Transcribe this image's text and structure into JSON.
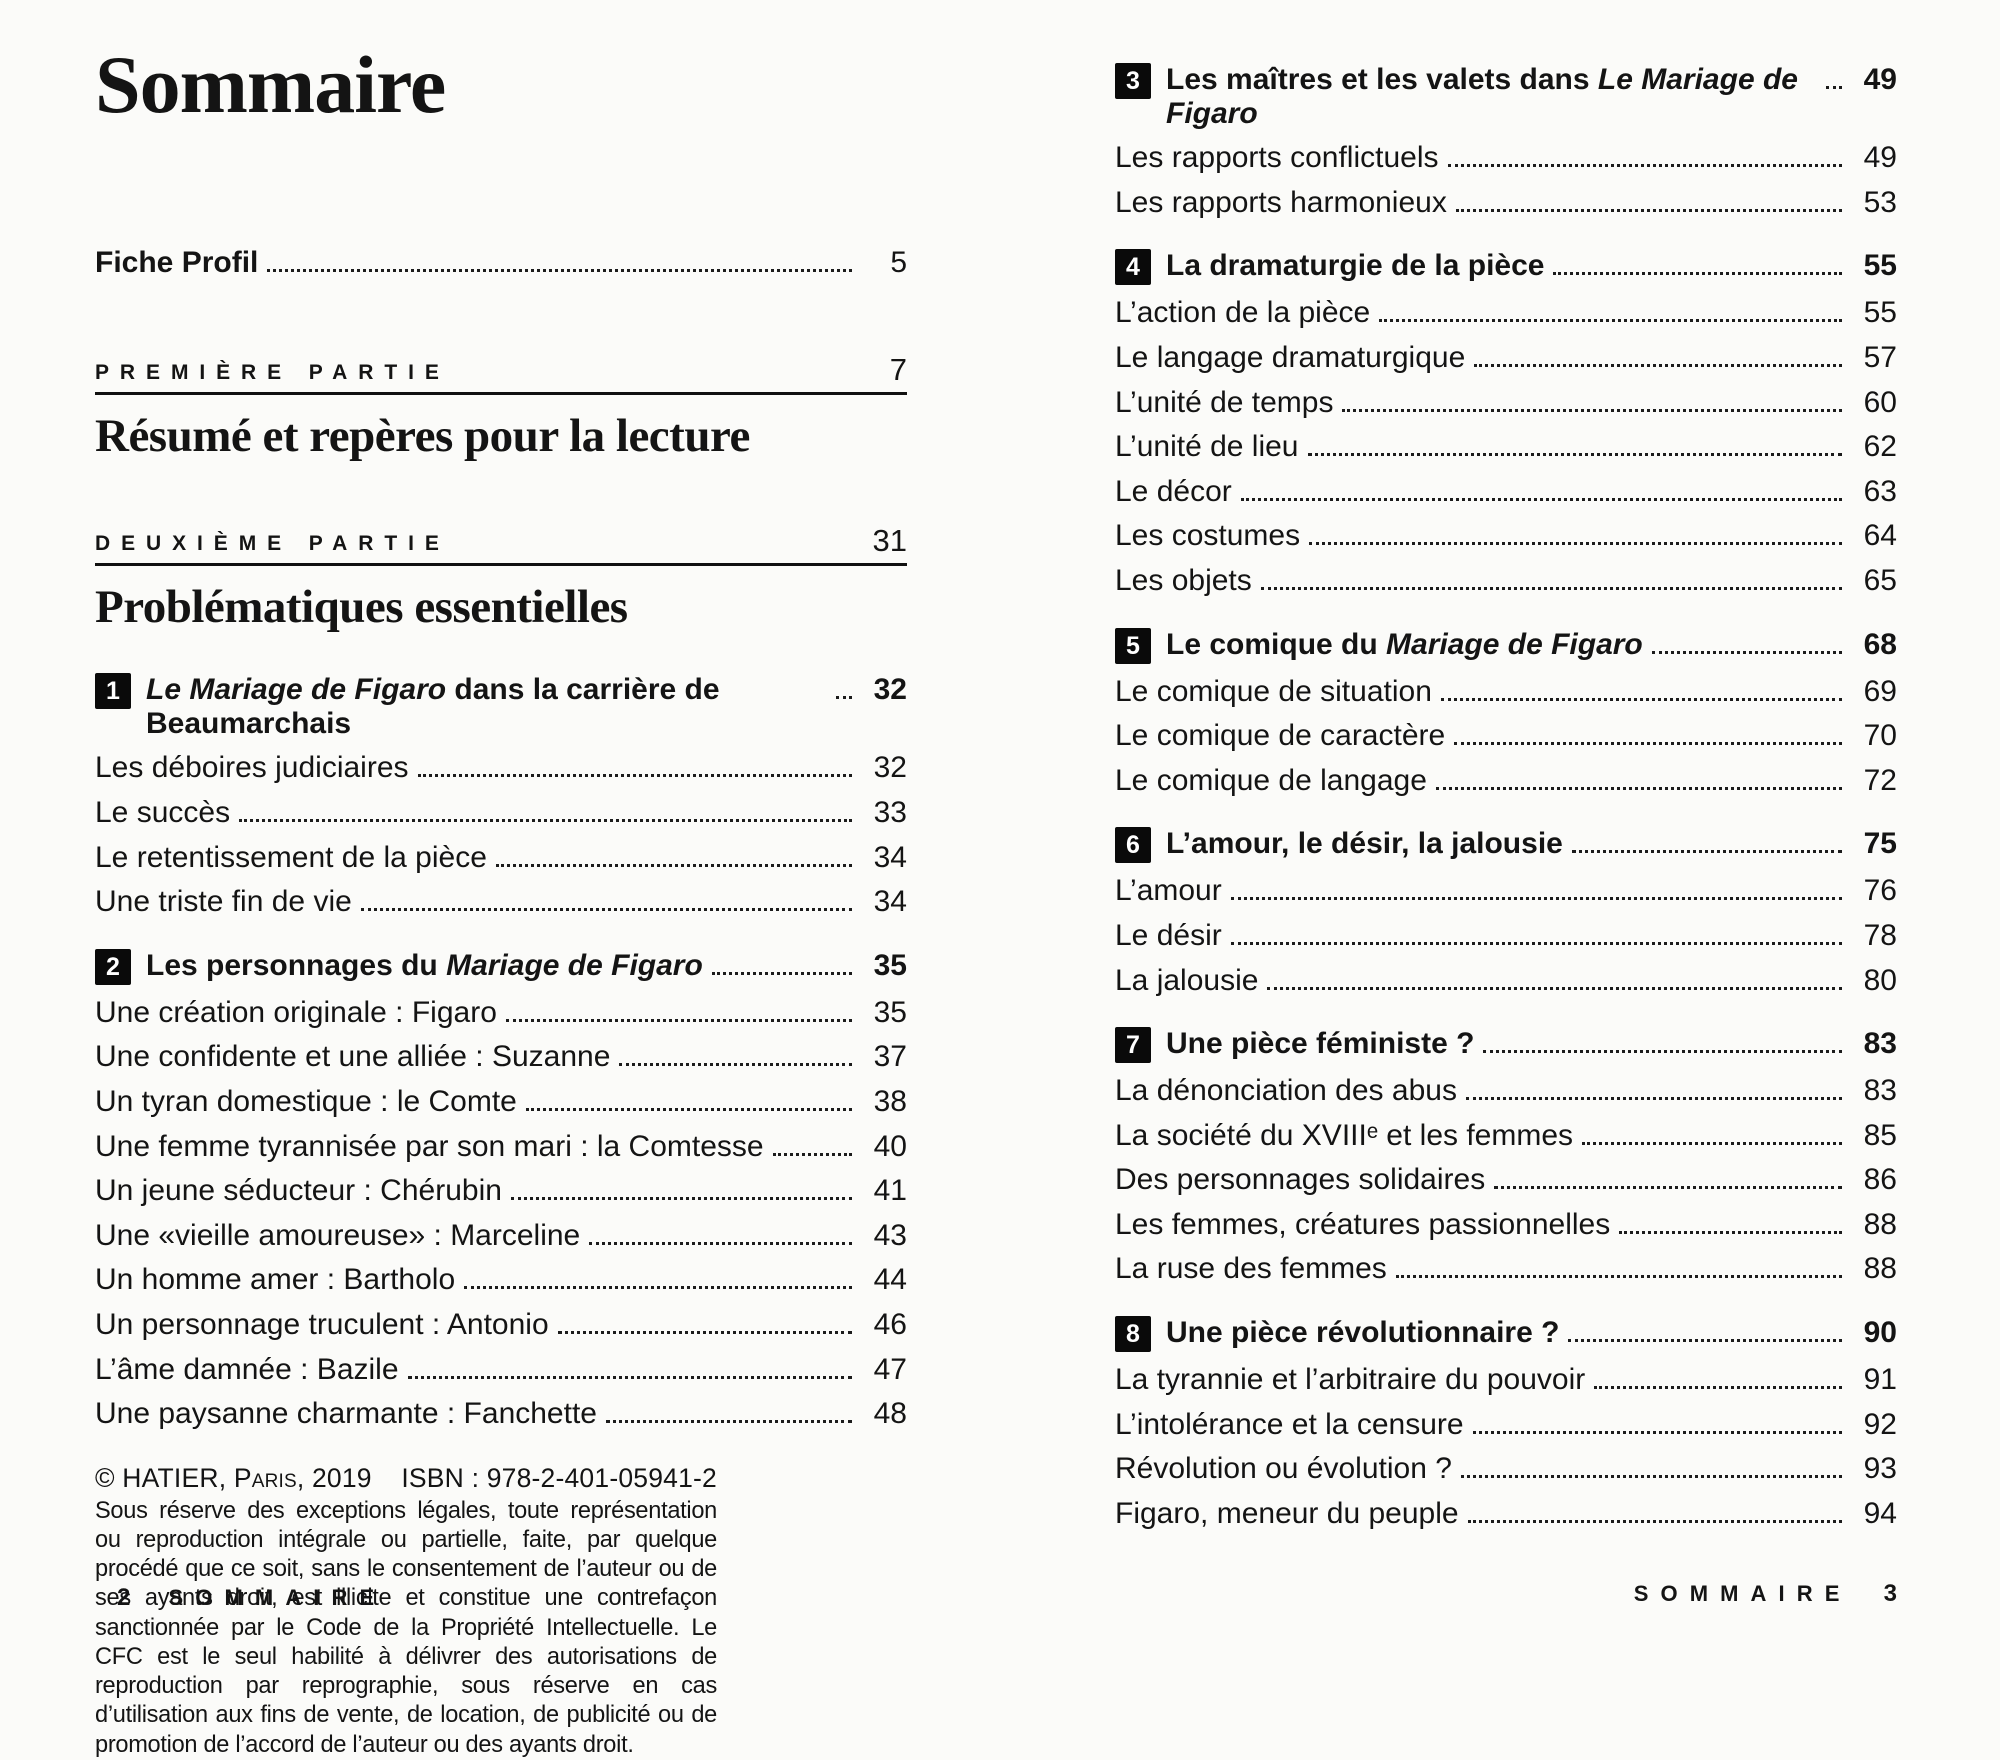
{
  "left_page": {
    "title": "Sommaire",
    "standalone_entries": [
      {
        "label": "Fiche Profil",
        "page": "5"
      }
    ],
    "parts": [
      {
        "kicker": "PREMIÈRE PARTIE",
        "page": "7",
        "title": "Résumé et repères pour la lecture"
      },
      {
        "kicker": "DEUXIÈME PARTIE",
        "page": "31",
        "title": "Problématiques essentielles"
      }
    ],
    "sections": [
      {
        "number": "1",
        "title_segments": [
          {
            "text": "Le Mariage de Figaro",
            "italic": true
          },
          {
            "text": " dans la carrière de Beaumarchais",
            "italic": false
          }
        ],
        "page": "32",
        "items": [
          {
            "label": "Les déboires judiciaires",
            "page": "32"
          },
          {
            "label": "Le succès",
            "page": "33"
          },
          {
            "label": "Le retentissement de la pièce",
            "page": "34"
          },
          {
            "label": "Une triste fin de vie",
            "page": "34"
          }
        ]
      },
      {
        "number": "2",
        "title_segments": [
          {
            "text": "Les personnages du ",
            "italic": false
          },
          {
            "text": "Mariage de Figaro",
            "italic": true
          }
        ],
        "page": "35",
        "items": [
          {
            "label": "Une création originale : Figaro",
            "page": "35"
          },
          {
            "label": "Une confidente et une alliée : Suzanne",
            "page": "37"
          },
          {
            "label": "Un tyran domestique : le Comte",
            "page": "38"
          },
          {
            "label": "Une femme tyrannisée par son mari : la Comtesse",
            "page": "40"
          },
          {
            "label": "Un jeune séducteur : Chérubin",
            "page": "41"
          },
          {
            "label": "Une «vieille amoureuse» : Marceline",
            "page": "43"
          },
          {
            "label": "Un homme amer : Bartholo",
            "page": "44"
          },
          {
            "label": "Un personnage truculent : Antonio",
            "page": "46"
          },
          {
            "label": "L’âme damnée : Bazile",
            "page": "47"
          },
          {
            "label": "Une paysanne charmante : Fanchette",
            "page": "48"
          }
        ]
      }
    ],
    "copyright": {
      "publisher": "© HATIER, Paris, 2019",
      "isbn": "ISBN : 978-2-401-05941-2",
      "legal": "Sous réserve des exceptions légales, toute représentation ou reproduction intégrale ou partielle, faite, par quelque procédé que ce soit, sans le consentement de l’auteur ou de ses ayants droit, est illicite et constitue une contrefaçon sanctionnée par le Code de la Propriété Intellectuelle. Le CFC est le seul habilité à délivrer des autorisations de reproduction par reprographie, sous réserve en cas d’utilisation aux fins de vente, de location, de publicité ou de promotion de l’accord de l’auteur ou des ayants droit."
    },
    "footer": {
      "page_number": "2",
      "label": "SOMMAIRE"
    }
  },
  "right_page": {
    "sections": [
      {
        "number": "3",
        "title_segments": [
          {
            "text": "Les maîtres et les valets dans ",
            "italic": false
          },
          {
            "text": "Le Mariage de Figaro",
            "italic": true
          }
        ],
        "page": "49",
        "items": [
          {
            "label": "Les rapports conflictuels",
            "page": "49"
          },
          {
            "label": "Les rapports harmonieux",
            "page": "53"
          }
        ]
      },
      {
        "number": "4",
        "title_segments": [
          {
            "text": "La dramaturgie de la pièce",
            "italic": false
          }
        ],
        "page": "55",
        "items": [
          {
            "label": "L’action de la pièce",
            "page": "55"
          },
          {
            "label": "Le langage dramaturgique",
            "page": "57"
          },
          {
            "label": "L’unité de temps",
            "page": "60"
          },
          {
            "label": "L’unité de lieu",
            "page": "62"
          },
          {
            "label": "Le décor",
            "page": "63"
          },
          {
            "label": "Les costumes",
            "page": "64"
          },
          {
            "label": "Les objets",
            "page": "65"
          }
        ]
      },
      {
        "number": "5",
        "title_segments": [
          {
            "text": "Le comique du ",
            "italic": false
          },
          {
            "text": "Mariage de Figaro",
            "italic": true
          }
        ],
        "page": "68",
        "items": [
          {
            "label": "Le comique de situation",
            "page": "69"
          },
          {
            "label": "Le comique de caractère",
            "page": "70"
          },
          {
            "label": "Le comique de langage",
            "page": "72"
          }
        ]
      },
      {
        "number": "6",
        "title_segments": [
          {
            "text": "L’amour, le désir, la jalousie",
            "italic": false
          }
        ],
        "page": "75",
        "items": [
          {
            "label": "L’amour",
            "page": "76"
          },
          {
            "label": "Le désir",
            "page": "78"
          },
          {
            "label": "La jalousie",
            "page": "80"
          }
        ]
      },
      {
        "number": "7",
        "title_segments": [
          {
            "text": "Une pièce féministe ?",
            "italic": false
          }
        ],
        "page": "83",
        "items": [
          {
            "label": "La dénonciation des abus",
            "page": "83"
          },
          {
            "label": "La société du XVIIIᵉ et les femmes",
            "page": "85"
          },
          {
            "label": "Des personnages solidaires",
            "page": "86"
          },
          {
            "label": "Les femmes, créatures passionnelles",
            "page": "88"
          },
          {
            "label": "La ruse des femmes",
            "page": "88"
          }
        ]
      },
      {
        "number": "8",
        "title_segments": [
          {
            "text": "Une pièce révolutionnaire ?",
            "italic": false
          }
        ],
        "page": "90",
        "items": [
          {
            "label": "La tyrannie et l’arbitraire du pouvoir",
            "page": "91"
          },
          {
            "label": "L’intolérance et la censure",
            "page": "92"
          },
          {
            "label": "Révolution ou évolution ?",
            "page": "93"
          },
          {
            "label": "Figaro, meneur du peuple",
            "page": "94"
          }
        ]
      }
    ],
    "footer": {
      "label": "SOMMAIRE",
      "page_number": "3"
    }
  }
}
